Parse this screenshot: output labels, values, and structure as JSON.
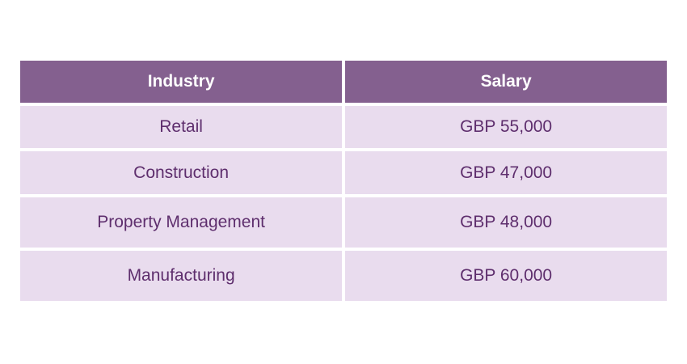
{
  "table": {
    "headers": [
      "Industry",
      "Salary"
    ],
    "rows": [
      [
        "Retail",
        "GBP 55,000"
      ],
      [
        "Construction",
        "GBP 47,000"
      ],
      [
        "Property Management",
        "GBP 48,000"
      ],
      [
        "Manufacturing",
        "GBP 60,000"
      ]
    ]
  },
  "colors": {
    "header_bg": "#84608f",
    "header_text": "#ffffff",
    "cell_bg": "#e9dcee",
    "cell_text": "#5e2e6d"
  }
}
